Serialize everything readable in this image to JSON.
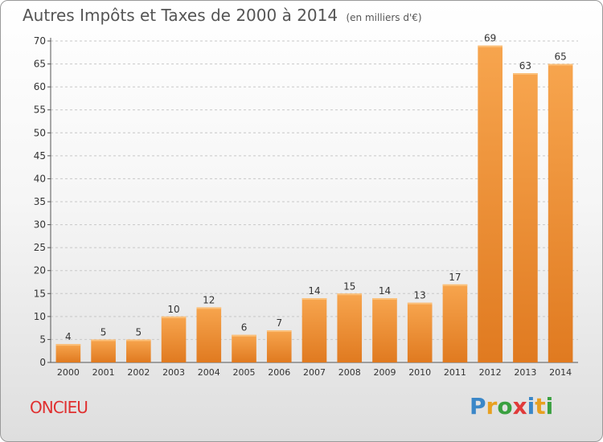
{
  "header": {
    "title": "Autres Impôts et Taxes de 2000 à 2014",
    "subtitle": "(en milliers d'€)"
  },
  "footer": {
    "commune": "ONCIEU",
    "logo_letters": [
      "P",
      "r",
      "o",
      "x",
      "i",
      "t",
      "i"
    ],
    "logo_colors": [
      "#3a87c8",
      "#e8a020",
      "#3aa040",
      "#e03a3a",
      "#3a87c8",
      "#e8a020",
      "#3aa040"
    ]
  },
  "chart_data": {
    "type": "bar",
    "categories": [
      "2000",
      "2001",
      "2002",
      "2003",
      "2004",
      "2005",
      "2006",
      "2007",
      "2008",
      "2009",
      "2010",
      "2011",
      "2012",
      "2013",
      "2014"
    ],
    "values": [
      4,
      5,
      5,
      10,
      12,
      6,
      7,
      14,
      15,
      14,
      13,
      17,
      69,
      63,
      65
    ],
    "ylim": [
      0,
      70
    ],
    "yticks": [
      0,
      5,
      10,
      15,
      20,
      25,
      30,
      35,
      40,
      45,
      50,
      55,
      60,
      65,
      70
    ],
    "grid": true,
    "bar_color": "#f0903a",
    "bar_color_light": "#f7a54e",
    "bar_color_dark": "#e07a20"
  }
}
